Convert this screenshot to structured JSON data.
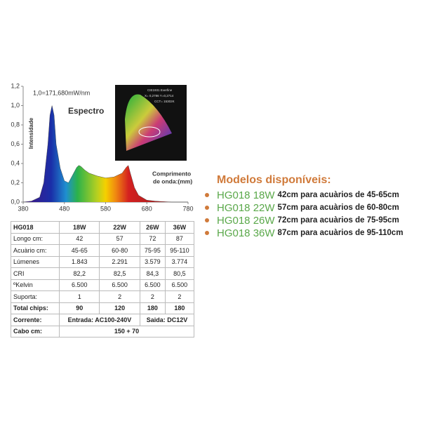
{
  "chart_data": {
    "type": "area",
    "annotation_scale": "1,0=171,680mW/nm",
    "title": "Espectro",
    "y_label": "Intensidade",
    "x_label": [
      "Comprimento",
      "de onda:(mm)"
    ],
    "x": [
      380,
      400,
      420,
      430,
      440,
      445,
      450,
      455,
      460,
      470,
      480,
      490,
      500,
      510,
      515,
      520,
      530,
      540,
      560,
      580,
      600,
      620,
      630,
      635,
      640,
      650,
      660,
      680,
      700,
      740,
      780
    ],
    "values": [
      0,
      0.01,
      0.05,
      0.2,
      0.6,
      0.9,
      1.0,
      0.9,
      0.6,
      0.35,
      0.22,
      0.2,
      0.28,
      0.36,
      0.38,
      0.37,
      0.33,
      0.3,
      0.27,
      0.25,
      0.26,
      0.3,
      0.36,
      0.38,
      0.3,
      0.15,
      0.07,
      0.02,
      0.01,
      0,
      0
    ],
    "xlim": [
      380,
      780
    ],
    "xticks": [
      380,
      480,
      580,
      680,
      780
    ],
    "ylim": [
      0,
      1.2
    ],
    "yticks": [
      {
        "value": 0,
        "label": "0,0"
      },
      {
        "value": 0.2,
        "label": "0,2"
      },
      {
        "value": 0.4,
        "label": "0,4"
      },
      {
        "value": 0.6,
        "label": "0,6"
      },
      {
        "value": 0.8,
        "label": "0,8"
      },
      {
        "value": 1.0,
        "label": "1,0"
      },
      {
        "value": 1.2,
        "label": "1,2"
      }
    ]
  },
  "inset": {
    "lines": [
      "CIE1931 Everfine",
      "X= 0,2786 Y=0,2714",
      "CCT= 15302K"
    ]
  },
  "table": {
    "header": [
      "HG018",
      "18W",
      "22W",
      "26W",
      "36W"
    ],
    "rows": [
      [
        "Longo cm:",
        "42",
        "57",
        "72",
        "87"
      ],
      [
        "Acuàrio cm:",
        "45-65",
        "60-80",
        "75-95",
        "95-110"
      ],
      [
        "Lúmenes",
        "1.843",
        "2.291",
        "3.579",
        "3.774"
      ],
      [
        "CRI",
        "82,2",
        "82,5",
        "84,3",
        "80,5"
      ],
      [
        "ºKelvin",
        "6.500",
        "6.500",
        "6.500",
        "6.500"
      ],
      [
        "Suporta:",
        "1",
        "2",
        "2",
        "2"
      ],
      [
        "Total chips:",
        "90",
        "120",
        "180",
        "180"
      ],
      [
        "Corrente:",
        "Entrada: AC100-240V",
        "Saida: DC12V"
      ],
      [
        "Cabo cm:",
        "150 + 70"
      ]
    ]
  },
  "models": {
    "title": "Modelos disponíveis:",
    "items": [
      {
        "model": "HG018 18W",
        "desc": "42cm para acuàrios de 45-65cm"
      },
      {
        "model": "HG018 22W",
        "desc": "57cm para acuàrios de 60-80cm"
      },
      {
        "model": "HG018 26W",
        "desc": "72cm para acuàrios de 75-95cm"
      },
      {
        "model": "HG018 36W",
        "desc": "87cm para acuàrios de 95-110cm"
      }
    ]
  }
}
